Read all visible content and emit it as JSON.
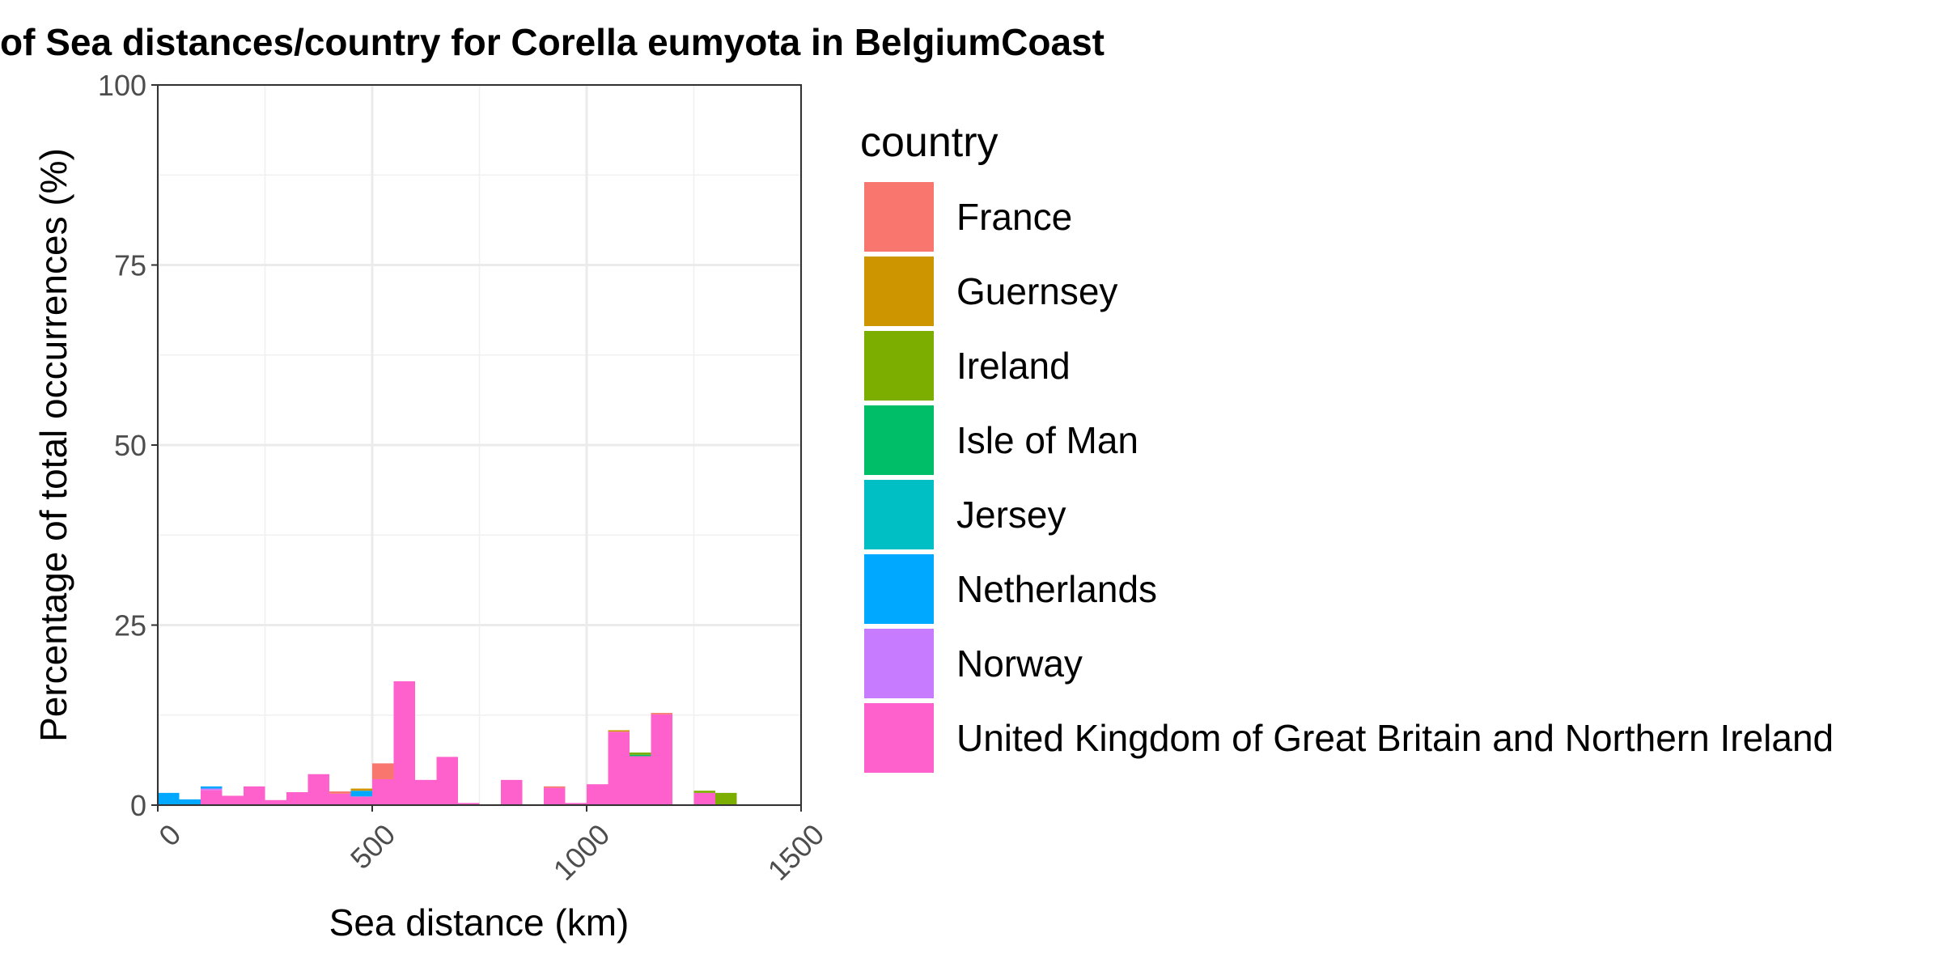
{
  "chart_data": {
    "type": "bar",
    "stacked": true,
    "title": "of Sea distances/country for Corella eumyota in BelgiumCoast",
    "xlabel": "Sea distance (km)",
    "ylabel": "Percentage of total occurrences (%)",
    "xlim": [
      0,
      1500
    ],
    "ylim": [
      0,
      100
    ],
    "x_ticks": [
      0,
      500,
      1000,
      1500
    ],
    "x_tick_labels": [
      "0",
      "500",
      "1000",
      "1500"
    ],
    "y_ticks": [
      0,
      25,
      50,
      75,
      100
    ],
    "y_tick_labels": [
      "0",
      "25",
      "50",
      "75",
      "100"
    ],
    "grid": true,
    "legend_title": "country",
    "legend_position": "right",
    "bin_width": 50,
    "bins": [
      0,
      50,
      100,
      150,
      200,
      250,
      300,
      350,
      400,
      450,
      500,
      550,
      600,
      650,
      700,
      750,
      800,
      850,
      900,
      950,
      1000,
      1050,
      1100,
      1150,
      1200,
      1250,
      1300
    ],
    "series": [
      {
        "name": "France",
        "color": "#F8766D",
        "values": [
          0,
          0,
          0,
          0,
          0,
          0,
          0,
          0,
          0.3,
          0,
          2.2,
          0,
          0,
          0,
          0,
          0,
          0,
          0,
          0.2,
          0,
          0,
          0,
          0,
          0.2,
          0,
          0,
          0
        ]
      },
      {
        "name": "Guernsey",
        "color": "#CD9600",
        "values": [
          0,
          0,
          0,
          0,
          0,
          0,
          0,
          0,
          0,
          0.3,
          0,
          0,
          0,
          0,
          0,
          0,
          0,
          0,
          0,
          0,
          0,
          0.2,
          0,
          0,
          0,
          0,
          0
        ]
      },
      {
        "name": "Ireland",
        "color": "#7CAE00",
        "values": [
          0,
          0,
          0,
          0,
          0,
          0,
          0,
          0,
          0,
          0,
          0,
          0,
          0,
          0,
          0,
          0,
          0,
          0,
          0,
          0,
          0,
          0,
          0.3,
          0,
          0,
          0.3,
          1.7
        ]
      },
      {
        "name": "Isle of Man",
        "color": "#00BE67",
        "values": [
          0,
          0,
          0,
          0,
          0,
          0,
          0,
          0,
          0,
          0,
          0,
          0,
          0,
          0,
          0,
          0,
          0,
          0,
          0,
          0,
          0,
          0,
          0.2,
          0,
          0,
          0,
          0
        ]
      },
      {
        "name": "Jersey",
        "color": "#00BFC4",
        "values": [
          0,
          0,
          0,
          0,
          0,
          0,
          0,
          0,
          0,
          0,
          0,
          0,
          0,
          0,
          0,
          0,
          0,
          0,
          0,
          0,
          0,
          0,
          0,
          0,
          0,
          0,
          0
        ]
      },
      {
        "name": "Netherlands",
        "color": "#00A9FF",
        "values": [
          1.7,
          0.8,
          0.3,
          0,
          0,
          0,
          0,
          0,
          0,
          0.8,
          0,
          0,
          0,
          0,
          0,
          0,
          0,
          0,
          0,
          0,
          0,
          0,
          0,
          0,
          0,
          0,
          0
        ]
      },
      {
        "name": "Norway",
        "color": "#C77CFF",
        "values": [
          0,
          0,
          0.2,
          0,
          0,
          0,
          0,
          0,
          0,
          0,
          0,
          0,
          0,
          0,
          0,
          0,
          0,
          0,
          0,
          0,
          0,
          0,
          0,
          0,
          0,
          0,
          0
        ]
      },
      {
        "name": "United Kingdom of Great Britain and Northern Ireland",
        "color": "#FF61CC",
        "values": [
          0,
          0,
          2.1,
          1.3,
          2.6,
          0.7,
          1.8,
          4.3,
          1.6,
          1.2,
          3.6,
          17.2,
          3.5,
          6.7,
          0.3,
          0,
          3.5,
          0,
          2.4,
          0.3,
          2.9,
          10.2,
          6.8,
          12.6,
          0,
          1.7,
          0
        ]
      }
    ]
  }
}
